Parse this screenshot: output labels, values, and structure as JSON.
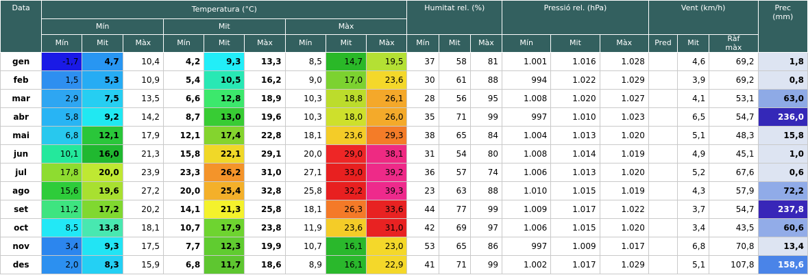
{
  "headers": {
    "data": "Data",
    "temperatura": "Temperatura (°C)",
    "humitat": "Humitat rel. (%)",
    "pressio": "Pressió rel. (hPa)",
    "vent": "Vent (km/h)",
    "prec_line1": "Prec",
    "prec_line2": "(mm)",
    "min_group": "Mín",
    "mit_group": "Mit",
    "max_group": "Màx",
    "min": "Mín",
    "mit": "Mit",
    "max": "Màx",
    "pred": "Pred",
    "raf_line1": "Ràf",
    "raf_line2": "màx"
  },
  "colors": {
    "header_bg": "#33605f",
    "prec_bg": "#dde4f2",
    "text_blue": "#1f4fb3",
    "text_red": "#c32222"
  },
  "columns": [
    "month",
    "tmin_min",
    "tmin_mit",
    "tmin_max",
    "tmit_min",
    "tmit_mit",
    "tmit_max",
    "tmax_min",
    "tmax_mit",
    "tmax_max",
    "hum_min",
    "hum_mit",
    "hum_max",
    "pres_min",
    "pres_mit",
    "pres_max",
    "vent_pred",
    "vent_mit",
    "vent_raf",
    "prec"
  ],
  "rows": [
    {
      "month": "gen",
      "tmin_min": "-1,7",
      "tmin_mit": "4,7",
      "tmin_max": "10,4",
      "tmit_min": "4,2",
      "tmit_mit": "9,3",
      "tmit_max": "13,3",
      "tmax_min": "8,5",
      "tmax_mit": "14,7",
      "tmax_max": "19,5",
      "hum_min": "37",
      "hum_mit": "58",
      "hum_max": "81",
      "pres_min": "1.001",
      "pres_mit": "1.016",
      "pres_max": "1.028",
      "vent_pred": "",
      "vent_mit": "4,6",
      "vent_raf": "69,2",
      "prec": "1,8"
    },
    {
      "month": "feb",
      "tmin_min": "1,5",
      "tmin_mit": "5,3",
      "tmin_max": "10,9",
      "tmit_min": "5,4",
      "tmit_mit": "10,5",
      "tmit_max": "16,2",
      "tmax_min": "9,0",
      "tmax_mit": "17,0",
      "tmax_max": "23,6",
      "hum_min": "30",
      "hum_mit": "61",
      "hum_max": "88",
      "pres_min": "994",
      "pres_mit": "1.022",
      "pres_max": "1.029",
      "vent_pred": "",
      "vent_mit": "3,9",
      "vent_raf": "69,2",
      "prec": "0,8"
    },
    {
      "month": "mar",
      "tmin_min": "2,9",
      "tmin_mit": "7,5",
      "tmin_max": "13,5",
      "tmit_min": "6,6",
      "tmit_mit": "12,8",
      "tmit_max": "18,9",
      "tmax_min": "10,3",
      "tmax_mit": "18,8",
      "tmax_max": "26,1",
      "hum_min": "28",
      "hum_mit": "56",
      "hum_max": "95",
      "pres_min": "1.008",
      "pres_mit": "1.020",
      "pres_max": "1.027",
      "vent_pred": "",
      "vent_mit": "4,1",
      "vent_raf": "53,1",
      "prec": "63,0"
    },
    {
      "month": "abr",
      "tmin_min": "5,8",
      "tmin_mit": "9,2",
      "tmin_max": "14,2",
      "tmit_min": "8,7",
      "tmit_mit": "13,0",
      "tmit_max": "19,6",
      "tmax_min": "10,3",
      "tmax_mit": "18,0",
      "tmax_max": "26,0",
      "hum_min": "35",
      "hum_mit": "71",
      "hum_max": "99",
      "pres_min": "997",
      "pres_mit": "1.010",
      "pres_max": "1.023",
      "vent_pred": "",
      "vent_mit": "6,5",
      "vent_raf": "54,7",
      "prec": "236,0"
    },
    {
      "month": "mai",
      "tmin_min": "6,8",
      "tmin_mit": "12,1",
      "tmin_max": "17,9",
      "tmit_min": "12,1",
      "tmit_mit": "17,4",
      "tmit_max": "22,8",
      "tmax_min": "18,1",
      "tmax_mit": "23,6",
      "tmax_max": "29,3",
      "hum_min": "38",
      "hum_mit": "65",
      "hum_max": "84",
      "pres_min": "1.004",
      "pres_mit": "1.013",
      "pres_max": "1.020",
      "vent_pred": "",
      "vent_mit": "5,1",
      "vent_raf": "48,3",
      "prec": "15,8"
    },
    {
      "month": "jun",
      "tmin_min": "10,1",
      "tmin_mit": "16,0",
      "tmin_max": "21,3",
      "tmit_min": "15,8",
      "tmit_mit": "22,1",
      "tmit_max": "29,1",
      "tmax_min": "20,0",
      "tmax_mit": "29,0",
      "tmax_max": "38,1",
      "hum_min": "31",
      "hum_mit": "54",
      "hum_max": "80",
      "pres_min": "1.008",
      "pres_mit": "1.014",
      "pres_max": "1.019",
      "vent_pred": "",
      "vent_mit": "4,9",
      "vent_raf": "45,1",
      "prec": "1,0"
    },
    {
      "month": "jul",
      "tmin_min": "17,8",
      "tmin_mit": "20,0",
      "tmin_max": "23,9",
      "tmit_min": "23,3",
      "tmit_mit": "26,2",
      "tmit_max": "31,0",
      "tmax_min": "27,1",
      "tmax_mit": "33,0",
      "tmax_max": "39,2",
      "hum_min": "36",
      "hum_mit": "57",
      "hum_max": "74",
      "pres_min": "1.006",
      "pres_mit": "1.013",
      "pres_max": "1.020",
      "vent_pred": "",
      "vent_mit": "5,2",
      "vent_raf": "67,6",
      "prec": "0,6"
    },
    {
      "month": "ago",
      "tmin_min": "15,6",
      "tmin_mit": "19,6",
      "tmin_max": "27,2",
      "tmit_min": "20,0",
      "tmit_mit": "25,4",
      "tmit_max": "32,8",
      "tmax_min": "25,8",
      "tmax_mit": "32,2",
      "tmax_max": "39,3",
      "hum_min": "23",
      "hum_mit": "63",
      "hum_max": "88",
      "pres_min": "1.010",
      "pres_mit": "1.015",
      "pres_max": "1.019",
      "vent_pred": "",
      "vent_mit": "4,3",
      "vent_raf": "57,9",
      "prec": "72,2"
    },
    {
      "month": "set",
      "tmin_min": "11,2",
      "tmin_mit": "17,2",
      "tmin_max": "20,2",
      "tmit_min": "14,1",
      "tmit_mit": "21,3",
      "tmit_max": "25,8",
      "tmax_min": "18,1",
      "tmax_mit": "26,3",
      "tmax_max": "33,6",
      "hum_min": "44",
      "hum_mit": "77",
      "hum_max": "99",
      "pres_min": "1.009",
      "pres_mit": "1.017",
      "pres_max": "1.022",
      "vent_pred": "",
      "vent_mit": "3,7",
      "vent_raf": "54,7",
      "prec": "237,8"
    },
    {
      "month": "oct",
      "tmin_min": "8,5",
      "tmin_mit": "13,8",
      "tmin_max": "18,1",
      "tmit_min": "10,7",
      "tmit_mit": "17,9",
      "tmit_max": "23,8",
      "tmax_min": "11,9",
      "tmax_mit": "23,6",
      "tmax_max": "31,0",
      "hum_min": "42",
      "hum_mit": "69",
      "hum_max": "97",
      "pres_min": "1.006",
      "pres_mit": "1.015",
      "pres_max": "1.020",
      "vent_pred": "",
      "vent_mit": "3,4",
      "vent_raf": "43,5",
      "prec": "60,6"
    },
    {
      "month": "nov",
      "tmin_min": "3,4",
      "tmin_mit": "9,3",
      "tmin_max": "17,5",
      "tmit_min": "7,7",
      "tmit_mit": "12,3",
      "tmit_max": "19,9",
      "tmax_min": "10,7",
      "tmax_mit": "16,1",
      "tmax_max": "23,0",
      "hum_min": "53",
      "hum_mit": "65",
      "hum_max": "86",
      "pres_min": "997",
      "pres_mit": "1.009",
      "pres_max": "1.017",
      "vent_pred": "",
      "vent_mit": "6,8",
      "vent_raf": "70,8",
      "prec": "13,4"
    },
    {
      "month": "des",
      "tmin_min": "2,0",
      "tmin_mit": "8,3",
      "tmin_max": "15,9",
      "tmit_min": "6,8",
      "tmit_mit": "11,7",
      "tmit_max": "18,6",
      "tmax_min": "8,9",
      "tmax_mit": "16,1",
      "tmax_max": "22,9",
      "hum_min": "41",
      "hum_mit": "71",
      "hum_max": "99",
      "pres_min": "1.002",
      "pres_mit": "1.017",
      "pres_max": "1.029",
      "vent_pred": "",
      "vent_mit": "5,1",
      "vent_raf": "107,8",
      "prec": "158,6"
    }
  ],
  "cell_colors": {
    "tmin_min": [
      "#1a1ae6",
      "#2e8ff0",
      "#2ea6f2",
      "#28b4f4",
      "#28c8ee",
      "#24e89c",
      "#8edc30",
      "#2ecc3a",
      "#3ee480",
      "#22e8f6",
      "#2c86ee",
      "#2c90f0"
    ],
    "tmin_mit": [
      "#2896f2",
      "#26acf4",
      "#26cef2",
      "#20e8f2",
      "#2ac63a",
      "#20b830",
      "#bfe832",
      "#a8e030",
      "#80d830",
      "#48e8b0",
      "#22e4f4",
      "#24d0f4"
    ],
    "tmit_mit": [
      "#22eef8",
      "#28e8b4",
      "#3ce86c",
      "#38cc34",
      "#84d42e",
      "#f0d828",
      "#f4942a",
      "#f4b02a",
      "#f4f22c",
      "#6ed430",
      "#60cc30",
      "#5ec630"
    ],
    "tmax_mit": [
      "#2ab828",
      "#7cd230",
      "#bcdc2c",
      "#cee02c",
      "#f4cc28",
      "#ee2626",
      "#e82020",
      "#e82020",
      "#f47a28",
      "#f4cc28",
      "#2ab82c",
      "#2ab82c"
    ],
    "tmax_max": [
      "#b4e034",
      "#f4d82a",
      "#f4a82a",
      "#f4aa2a",
      "#f47c28",
      "#ee2a82",
      "#ee2a88",
      "#ee2a8c",
      "#e82222",
      "#e82222",
      "#f4d82a",
      "#f4d82a"
    ],
    "prec": [
      "#dde4f2",
      "#dde4f2",
      "#8eaae6",
      "#3428b8",
      "#dde4f2",
      "#dde4f2",
      "#dde4f2",
      "#90abe8",
      "#3826b8",
      "#92ace8",
      "#dde4f2",
      "#4a84e8"
    ],
    "prec_text": [
      "#000000",
      "#000000",
      "#000000",
      "#ffffff",
      "#000000",
      "#000000",
      "#000000",
      "#000000",
      "#ffffff",
      "#000000",
      "#000000",
      "#ffffff"
    ]
  }
}
